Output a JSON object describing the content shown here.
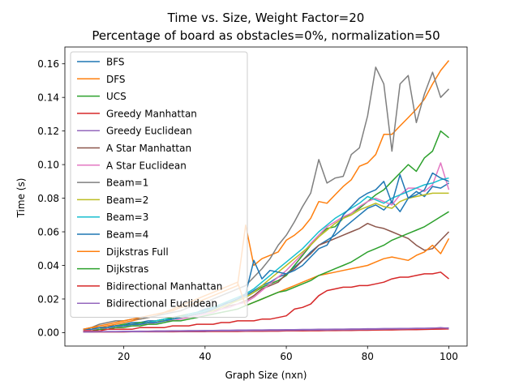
{
  "chart_data": {
    "type": "line",
    "title": "Time vs. Size, Weight Factor=20",
    "subtitle": "Percentage of board as obstacles=0%, normalization=50",
    "xlabel": "Graph Size (nxn)",
    "ylabel": "Time (s)",
    "xlim": [
      5.5,
      104.5
    ],
    "ylim": [
      -0.008,
      0.17
    ],
    "xticks": [
      20,
      40,
      60,
      80,
      100
    ],
    "yticks": [
      0.0,
      0.02,
      0.04,
      0.06,
      0.08,
      0.1,
      0.12,
      0.14,
      0.16
    ],
    "ytick_labels": [
      "0.00",
      "0.02",
      "0.04",
      "0.06",
      "0.08",
      "0.10",
      "0.12",
      "0.14",
      "0.16"
    ],
    "grid": false,
    "legend_position": "top-left",
    "x": [
      10,
      12,
      14,
      16,
      18,
      20,
      22,
      24,
      26,
      28,
      30,
      32,
      34,
      36,
      38,
      40,
      42,
      44,
      46,
      48,
      50,
      52,
      54,
      56,
      58,
      60,
      62,
      64,
      66,
      68,
      70,
      72,
      74,
      76,
      78,
      80,
      82,
      84,
      86,
      88,
      90,
      92,
      94,
      96,
      98,
      100
    ],
    "series": [
      {
        "name": "BFS",
        "color": "#1f77b4",
        "values": [
          0.001,
          0.002,
          0.003,
          0.004,
          0.004,
          0.005,
          0.006,
          0.006,
          0.007,
          0.007,
          0.008,
          0.009,
          0.01,
          0.011,
          0.012,
          0.014,
          0.015,
          0.017,
          0.018,
          0.02,
          0.022,
          0.025,
          0.028,
          0.03,
          0.033,
          0.035,
          0.039,
          0.043,
          0.048,
          0.052,
          0.055,
          0.058,
          0.062,
          0.066,
          0.07,
          0.074,
          0.076,
          0.073,
          0.078,
          0.072,
          0.08,
          0.084,
          0.081,
          0.087,
          0.086,
          0.089
        ]
      },
      {
        "name": "DFS",
        "color": "#ff7f0e",
        "values": [
          0.002,
          0.003,
          0.003,
          0.004,
          0.005,
          0.006,
          0.007,
          0.008,
          0.009,
          0.01,
          0.012,
          0.013,
          0.015,
          0.016,
          0.018,
          0.02,
          0.022,
          0.024,
          0.026,
          0.028,
          0.064,
          0.04,
          0.044,
          0.046,
          0.048,
          0.055,
          0.058,
          0.062,
          0.068,
          0.078,
          0.077,
          0.082,
          0.087,
          0.091,
          0.099,
          0.101,
          0.106,
          0.118,
          0.118,
          0.123,
          0.128,
          0.133,
          0.139,
          0.148,
          0.156,
          0.162
        ]
      },
      {
        "name": "UCS",
        "color": "#2ca02c",
        "values": [
          0.001,
          0.002,
          0.002,
          0.003,
          0.004,
          0.005,
          0.005,
          0.006,
          0.006,
          0.007,
          0.008,
          0.009,
          0.01,
          0.011,
          0.012,
          0.013,
          0.015,
          0.016,
          0.018,
          0.019,
          0.021,
          0.024,
          0.027,
          0.029,
          0.031,
          0.034,
          0.04,
          0.046,
          0.052,
          0.058,
          0.062,
          0.063,
          0.068,
          0.071,
          0.074,
          0.078,
          0.082,
          0.085,
          0.09,
          0.095,
          0.1,
          0.096,
          0.104,
          0.108,
          0.12,
          0.116
        ]
      },
      {
        "name": "Greedy Manhattan",
        "color": "#d62728",
        "values": [
          0.0003,
          0.0003,
          0.0004,
          0.0004,
          0.0004,
          0.0004,
          0.0005,
          0.0005,
          0.0005,
          0.0005,
          0.0005,
          0.0005,
          0.0006,
          0.0006,
          0.0006,
          0.0006,
          0.0007,
          0.0007,
          0.0007,
          0.0007,
          0.0008,
          0.0008,
          0.0008,
          0.0009,
          0.0009,
          0.001,
          0.001,
          0.001,
          0.0011,
          0.0011,
          0.0012,
          0.0012,
          0.0013,
          0.0013,
          0.0014,
          0.0014,
          0.0015,
          0.0016,
          0.0016,
          0.0017,
          0.0018,
          0.0018,
          0.0019,
          0.002,
          0.0021,
          0.0022
        ]
      },
      {
        "name": "Greedy Euclidean",
        "color": "#9467bd",
        "values": [
          0.0004,
          0.0004,
          0.0005,
          0.0005,
          0.0005,
          0.0006,
          0.0006,
          0.0006,
          0.0007,
          0.0007,
          0.0007,
          0.0008,
          0.0008,
          0.0008,
          0.0009,
          0.0009,
          0.001,
          0.001,
          0.001,
          0.0011,
          0.0011,
          0.0012,
          0.0012,
          0.0013,
          0.0013,
          0.0014,
          0.0014,
          0.0015,
          0.0015,
          0.0016,
          0.0016,
          0.0017,
          0.0017,
          0.0018,
          0.0019,
          0.0019,
          0.002,
          0.0021,
          0.0022,
          0.0022,
          0.0023,
          0.0024,
          0.0025,
          0.0026,
          0.003,
          0.0025
        ]
      },
      {
        "name": "A Star Manhattan",
        "color": "#8c564b",
        "values": [
          0.002,
          0.002,
          0.003,
          0.003,
          0.004,
          0.004,
          0.005,
          0.005,
          0.006,
          0.006,
          0.007,
          0.008,
          0.009,
          0.01,
          0.011,
          0.012,
          0.013,
          0.014,
          0.016,
          0.017,
          0.019,
          0.022,
          0.026,
          0.028,
          0.03,
          0.035,
          0.038,
          0.043,
          0.047,
          0.052,
          0.054,
          0.056,
          0.058,
          0.06,
          0.062,
          0.065,
          0.063,
          0.062,
          0.06,
          0.058,
          0.056,
          0.052,
          0.049,
          0.05,
          0.055,
          0.06
        ]
      },
      {
        "name": "A Star Euclidean",
        "color": "#e377c2",
        "values": [
          0.001,
          0.002,
          0.002,
          0.003,
          0.003,
          0.004,
          0.004,
          0.005,
          0.005,
          0.006,
          0.007,
          0.007,
          0.008,
          0.009,
          0.01,
          0.011,
          0.012,
          0.014,
          0.015,
          0.017,
          0.018,
          0.021,
          0.025,
          0.029,
          0.033,
          0.037,
          0.042,
          0.047,
          0.053,
          0.058,
          0.063,
          0.066,
          0.069,
          0.071,
          0.075,
          0.078,
          0.08,
          0.078,
          0.076,
          0.082,
          0.086,
          0.086,
          0.084,
          0.088,
          0.101,
          0.085
        ]
      },
      {
        "name": "Beam=1",
        "color": "#7f7f7f",
        "values": [
          0.002,
          0.003,
          0.005,
          0.006,
          0.007,
          0.007,
          0.008,
          0.008,
          0.009,
          0.01,
          0.011,
          0.012,
          0.013,
          0.015,
          0.016,
          0.018,
          0.02,
          0.022,
          0.024,
          0.026,
          0.028,
          0.033,
          0.038,
          0.044,
          0.052,
          0.058,
          0.066,
          0.075,
          0.083,
          0.103,
          0.089,
          0.092,
          0.093,
          0.106,
          0.11,
          0.129,
          0.158,
          0.148,
          0.108,
          0.148,
          0.153,
          0.125,
          0.142,
          0.155,
          0.14,
          0.145
        ]
      },
      {
        "name": "Beam=2",
        "color": "#bcbd22",
        "values": [
          0.002,
          0.002,
          0.003,
          0.003,
          0.004,
          0.004,
          0.005,
          0.005,
          0.006,
          0.007,
          0.007,
          0.008,
          0.009,
          0.01,
          0.011,
          0.012,
          0.013,
          0.015,
          0.017,
          0.019,
          0.021,
          0.024,
          0.028,
          0.032,
          0.036,
          0.04,
          0.044,
          0.048,
          0.052,
          0.057,
          0.061,
          0.065,
          0.068,
          0.07,
          0.073,
          0.075,
          0.077,
          0.075,
          0.074,
          0.078,
          0.08,
          0.081,
          0.082,
          0.083,
          0.083,
          0.083
        ]
      },
      {
        "name": "Beam=3",
        "color": "#17becf",
        "values": [
          0.002,
          0.002,
          0.003,
          0.003,
          0.004,
          0.004,
          0.005,
          0.005,
          0.006,
          0.007,
          0.008,
          0.008,
          0.009,
          0.011,
          0.012,
          0.013,
          0.015,
          0.017,
          0.019,
          0.021,
          0.023,
          0.026,
          0.03,
          0.034,
          0.038,
          0.042,
          0.046,
          0.05,
          0.055,
          0.06,
          0.064,
          0.068,
          0.071,
          0.074,
          0.077,
          0.081,
          0.079,
          0.077,
          0.08,
          0.082,
          0.084,
          0.086,
          0.088,
          0.089,
          0.091,
          0.092
        ]
      },
      {
        "name": "Beam=4",
        "color": "#1f77b4",
        "values": [
          0.002,
          0.002,
          0.003,
          0.003,
          0.004,
          0.004,
          0.005,
          0.005,
          0.006,
          0.006,
          0.007,
          0.008,
          0.009,
          0.01,
          0.011,
          0.012,
          0.014,
          0.016,
          0.018,
          0.02,
          0.023,
          0.043,
          0.032,
          0.037,
          0.036,
          0.035,
          0.037,
          0.04,
          0.045,
          0.05,
          0.052,
          0.06,
          0.07,
          0.075,
          0.08,
          0.083,
          0.085,
          0.09,
          0.077,
          0.094,
          0.08,
          0.082,
          0.085,
          0.095,
          0.092,
          0.09
        ]
      },
      {
        "name": "Dijkstras Full",
        "color": "#ff7f0e",
        "values": [
          0.002,
          0.003,
          0.004,
          0.005,
          0.006,
          0.007,
          0.008,
          0.009,
          0.01,
          0.011,
          0.012,
          0.014,
          0.016,
          0.018,
          0.02,
          0.022,
          0.024,
          0.026,
          0.028,
          0.03,
          0.016,
          0.018,
          0.02,
          0.022,
          0.024,
          0.026,
          0.028,
          0.03,
          0.032,
          0.034,
          0.035,
          0.036,
          0.037,
          0.038,
          0.039,
          0.04,
          0.042,
          0.044,
          0.045,
          0.044,
          0.043,
          0.046,
          0.048,
          0.052,
          0.047,
          0.056
        ]
      },
      {
        "name": "Dijkstras",
        "color": "#2ca02c",
        "values": [
          0.001,
          0.001,
          0.002,
          0.002,
          0.003,
          0.003,
          0.004,
          0.004,
          0.005,
          0.005,
          0.006,
          0.007,
          0.007,
          0.008,
          0.009,
          0.01,
          0.011,
          0.012,
          0.013,
          0.014,
          0.016,
          0.018,
          0.02,
          0.022,
          0.024,
          0.025,
          0.027,
          0.029,
          0.031,
          0.034,
          0.036,
          0.038,
          0.04,
          0.042,
          0.045,
          0.048,
          0.05,
          0.052,
          0.055,
          0.057,
          0.059,
          0.061,
          0.063,
          0.066,
          0.069,
          0.072
        ]
      },
      {
        "name": "Bidirectional Manhattan",
        "color": "#d62728",
        "values": [
          0.001,
          0.001,
          0.001,
          0.002,
          0.002,
          0.002,
          0.002,
          0.003,
          0.003,
          0.003,
          0.003,
          0.004,
          0.004,
          0.004,
          0.005,
          0.005,
          0.005,
          0.006,
          0.006,
          0.007,
          0.007,
          0.007,
          0.008,
          0.008,
          0.009,
          0.01,
          0.014,
          0.015,
          0.017,
          0.022,
          0.025,
          0.026,
          0.027,
          0.027,
          0.028,
          0.028,
          0.029,
          0.03,
          0.032,
          0.033,
          0.033,
          0.034,
          0.035,
          0.035,
          0.036,
          0.032
        ]
      },
      {
        "name": "Bidirectional Euclidean",
        "color": "#9467bd",
        "values": [
          0.0005,
          0.0006,
          0.0006,
          0.0007,
          0.0007,
          0.0008,
          0.0008,
          0.0009,
          0.0009,
          0.001,
          0.001,
          0.0011,
          0.0011,
          0.0012,
          0.0012,
          0.0013,
          0.0013,
          0.0014,
          0.0014,
          0.0015,
          0.0015,
          0.0016,
          0.0016,
          0.0017,
          0.0017,
          0.0018,
          0.0018,
          0.0019,
          0.0019,
          0.002,
          0.002,
          0.0021,
          0.0021,
          0.0022,
          0.0022,
          0.0023,
          0.0023,
          0.0024,
          0.0024,
          0.0025,
          0.0025,
          0.0026,
          0.0026,
          0.0027,
          0.0027,
          0.0028
        ]
      }
    ]
  }
}
